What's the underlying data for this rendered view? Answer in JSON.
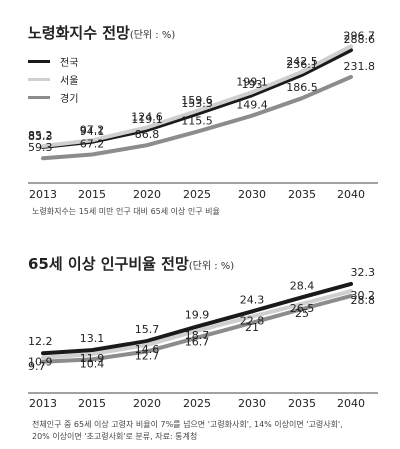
{
  "chart_data": [
    {
      "type": "line",
      "title": "노령화지수 전망",
      "unit_label": "(단위 : %)",
      "categories": [
        "2013",
        "2015",
        "2020",
        "2025",
        "2030",
        "2035",
        "2040"
      ],
      "series": [
        {
          "name": "전국",
          "color": "#1a1a1a",
          "values": [
            83.3,
            94.1,
            119.1,
            153.3,
            193,
            236.1,
            288.6
          ]
        },
        {
          "name": "서울",
          "color": "#cfcfcf",
          "values": [
            85.2,
            97.2,
            124.6,
            159.6,
            199.1,
            242.5,
            296.7
          ]
        },
        {
          "name": "경기",
          "color": "#8c8c8c",
          "values": [
            59.3,
            67.2,
            86.8,
            115.5,
            149.4,
            186.5,
            231.8
          ]
        }
      ],
      "ylim": [
        30,
        310
      ],
      "grid": false,
      "legend": "top-left",
      "note": "노령화지수는 15세 미만 인구 대비 65세 이상 인구 비율"
    },
    {
      "type": "line",
      "title": "65세 이상 인구비율 전망",
      "unit_label": "(단위 : %)",
      "categories": [
        "2013",
        "2015",
        "2020",
        "2025",
        "2030",
        "2035",
        "2040"
      ],
      "series": [
        {
          "color": "#1a1a1a",
          "values": [
            12.2,
            13.1,
            15.7,
            19.9,
            24.3,
            28.4,
            32.3
          ]
        },
        {
          "color": "#cfcfcf",
          "values": [
            10.9,
            11.9,
            14.6,
            18.7,
            22.8,
            26.5,
            30.2
          ]
        },
        {
          "color": "#8c8c8c",
          "values": [
            9.7,
            10.4,
            12.7,
            16.7,
            21,
            25,
            28.8
          ]
        }
      ],
      "ylim": [
        5,
        34
      ],
      "grid": false,
      "note": "전체인구 중 65세 이상 고령자 비율이 7%를 넘으면 '고령화사회', 14% 이상이면 '고령사회',",
      "note2": "20% 이상이면 '초고령사회'로 분류, 자료: 통계청"
    }
  ]
}
